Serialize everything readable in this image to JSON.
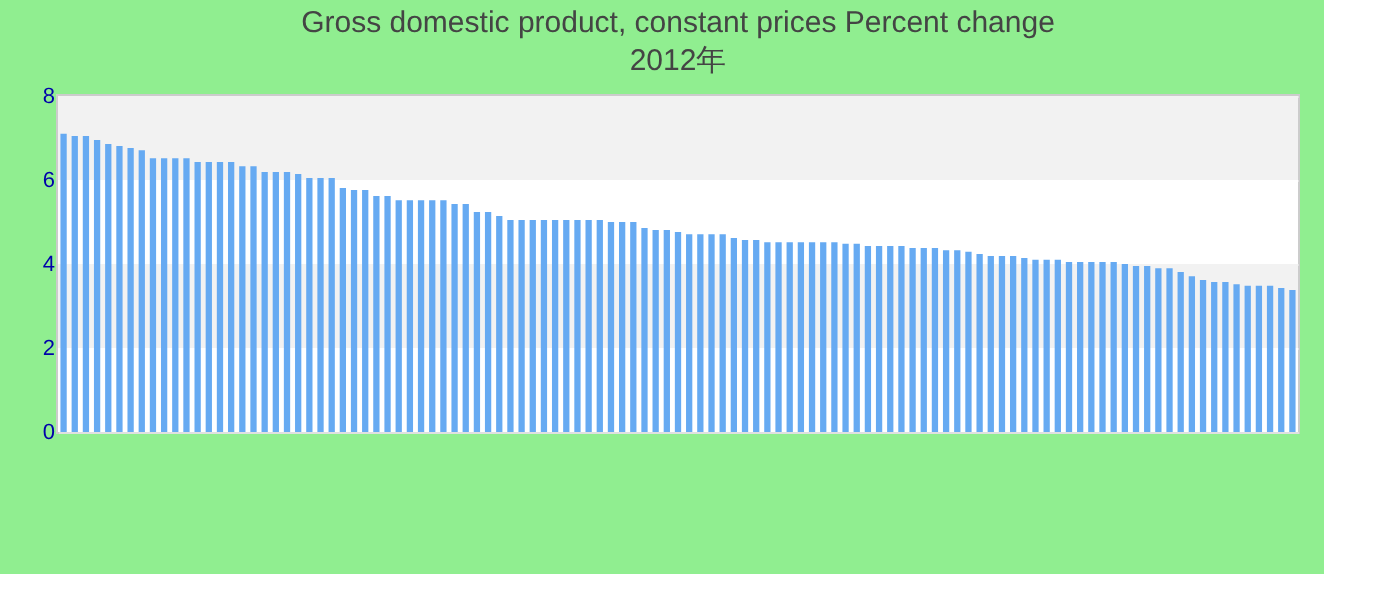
{
  "chart_data": {
    "type": "bar",
    "title": "Gross domestic product, constant prices  Percent change",
    "subtitle": "2012年",
    "categories": [
      null,
      null,
      null,
      null,
      null,
      null,
      null,
      null,
      null,
      null,
      null,
      null,
      null,
      null,
      null,
      null,
      null,
      null,
      null,
      null,
      null,
      null,
      null,
      null,
      null,
      null,
      null,
      null,
      null,
      null,
      null,
      null,
      null,
      null,
      null,
      null,
      null,
      null,
      null,
      null,
      null,
      null,
      null,
      null,
      null,
      null,
      null,
      null,
      null,
      null,
      null,
      null,
      null,
      null,
      null,
      null,
      null,
      null,
      null,
      null,
      null,
      null,
      null,
      null,
      null,
      null,
      null,
      null,
      null,
      null,
      null,
      null,
      null,
      null,
      null,
      null,
      null,
      null,
      null,
      null,
      null,
      null,
      null,
      null,
      null,
      null,
      null,
      null,
      null,
      null,
      null,
      null,
      null,
      null,
      null,
      null,
      null,
      null,
      null,
      null,
      null,
      null,
      null,
      null,
      null,
      null,
      null,
      null,
      null,
      null,
      null
    ],
    "values": [
      7.1,
      7.05,
      7.05,
      6.95,
      6.86,
      6.81,
      6.76,
      6.71,
      6.52,
      6.52,
      6.52,
      6.52,
      6.43,
      6.43,
      6.43,
      6.43,
      6.33,
      6.33,
      6.19,
      6.19,
      6.19,
      6.14,
      6.05,
      6.05,
      6.05,
      5.81,
      5.76,
      5.76,
      5.62,
      5.62,
      5.52,
      5.52,
      5.52,
      5.52,
      5.52,
      5.43,
      5.43,
      5.24,
      5.24,
      5.14,
      5.05,
      5.05,
      5.05,
      5.05,
      5.05,
      5.05,
      5.05,
      5.05,
      5.05,
      5.0,
      5.0,
      5.0,
      4.86,
      4.81,
      4.81,
      4.76,
      4.71,
      4.71,
      4.71,
      4.71,
      4.62,
      4.57,
      4.57,
      4.52,
      4.52,
      4.52,
      4.52,
      4.52,
      4.52,
      4.52,
      4.48,
      4.48,
      4.43,
      4.43,
      4.43,
      4.43,
      4.38,
      4.38,
      4.38,
      4.33,
      4.33,
      4.29,
      4.24,
      4.19,
      4.19,
      4.19,
      4.14,
      4.1,
      4.1,
      4.1,
      4.05,
      4.05,
      4.05,
      4.05,
      4.05,
      4.0,
      3.95,
      3.95,
      3.9,
      3.9,
      3.81,
      3.71,
      3.62,
      3.57,
      3.57,
      3.52,
      3.48,
      3.48,
      3.48,
      3.43,
      3.38
    ],
    "color": "#66aaf2",
    "ylim": [
      0,
      8
    ],
    "yticks": [
      0,
      2,
      4,
      6,
      8
    ],
    "grid": "y"
  }
}
